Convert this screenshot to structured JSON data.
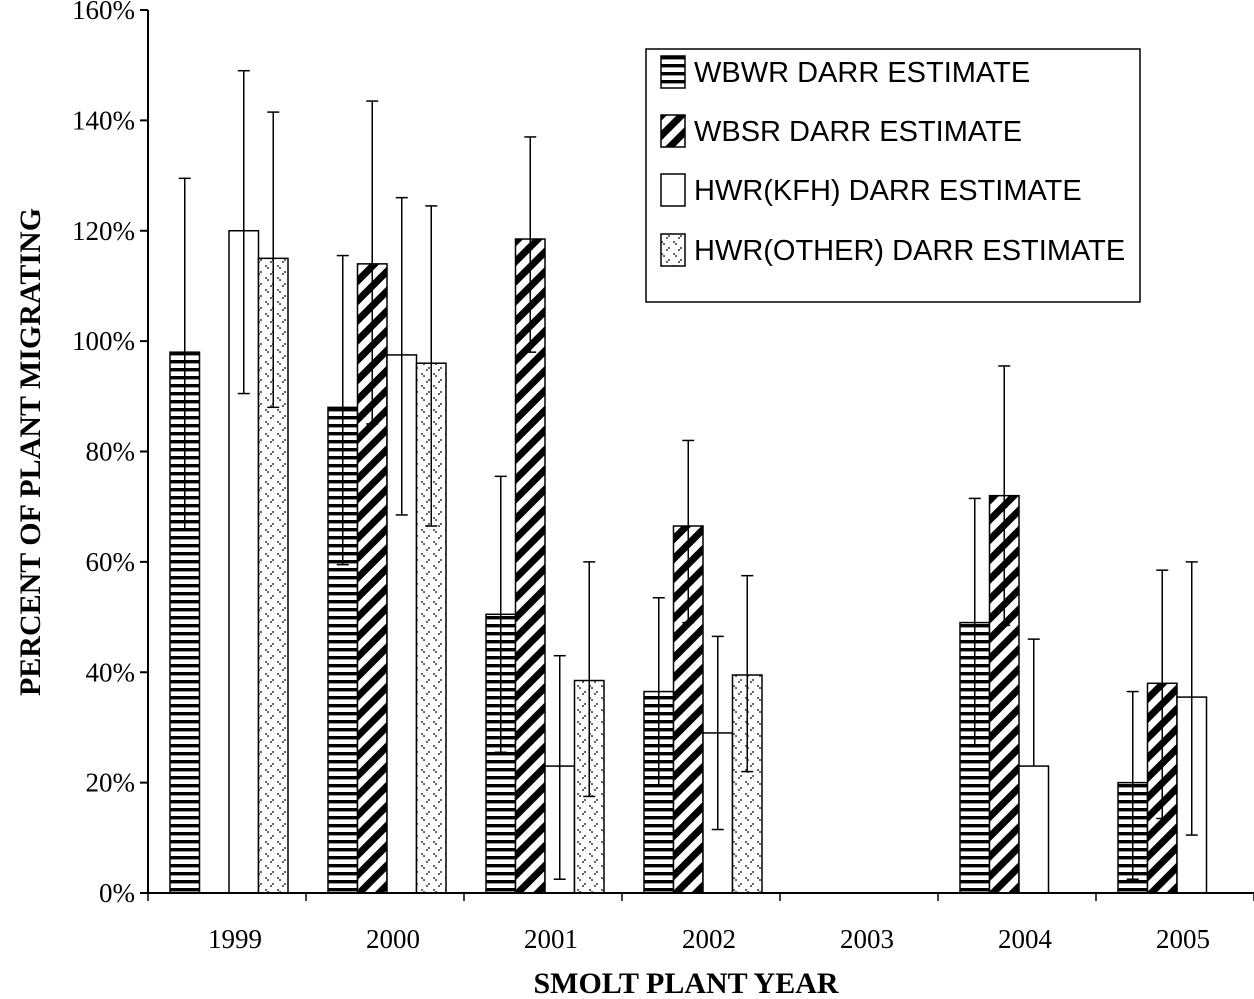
{
  "chart_data": {
    "type": "bar",
    "xlabel": "SMOLT PLANT YEAR",
    "ylabel": "PERCENT OF PLANT MIGRATING",
    "ylim": [
      0,
      160
    ],
    "yticks": [
      0,
      20,
      40,
      60,
      80,
      100,
      120,
      140,
      160
    ],
    "ytick_labels": [
      "0%",
      "20%",
      "40%",
      "60%",
      "80%",
      "100%",
      "120%",
      "140%",
      "160%"
    ],
    "categories": [
      "1999",
      "2000",
      "2001",
      "2002",
      "2003",
      "2004",
      "2005"
    ],
    "legend_position": "top-right",
    "series": [
      {
        "name": "WBWR DARR ESTIMATE",
        "pattern": "horizontal-lines",
        "values": [
          98,
          88,
          50.5,
          36.5,
          null,
          49,
          20
        ],
        "error_low": [
          66,
          59.5,
          25.5,
          19.5,
          null,
          26.5,
          2.5
        ],
        "error_high": [
          129.5,
          115.5,
          75.5,
          53.5,
          null,
          71.5,
          36.5
        ]
      },
      {
        "name": "WBSR DARR ESTIMATE",
        "pattern": "diagonal-stripes",
        "values": [
          null,
          114,
          118.5,
          66.5,
          null,
          72,
          38
        ],
        "error_low": [
          null,
          85,
          98,
          49,
          null,
          48.5,
          13.5
        ],
        "error_high": [
          null,
          143.5,
          137,
          82,
          null,
          95.5,
          58.5
        ]
      },
      {
        "name": "HWR(KFH) DARR ESTIMATE",
        "pattern": "open",
        "values": [
          120,
          97.5,
          23,
          29,
          null,
          23,
          35.5
        ],
        "error_low": [
          90.5,
          68.5,
          2.5,
          11.5,
          null,
          null,
          10.5
        ],
        "error_high": [
          149,
          126,
          43,
          46.5,
          null,
          46,
          60
        ]
      },
      {
        "name": "HWR(OTHER) DARR ESTIMATE",
        "pattern": "dots",
        "values": [
          115,
          96,
          38.5,
          39.5,
          null,
          null,
          null
        ],
        "error_low": [
          88,
          66.5,
          17.5,
          22,
          null,
          null,
          null
        ],
        "error_high": [
          141.5,
          124.5,
          60,
          57.5,
          null,
          null,
          null
        ]
      }
    ]
  }
}
